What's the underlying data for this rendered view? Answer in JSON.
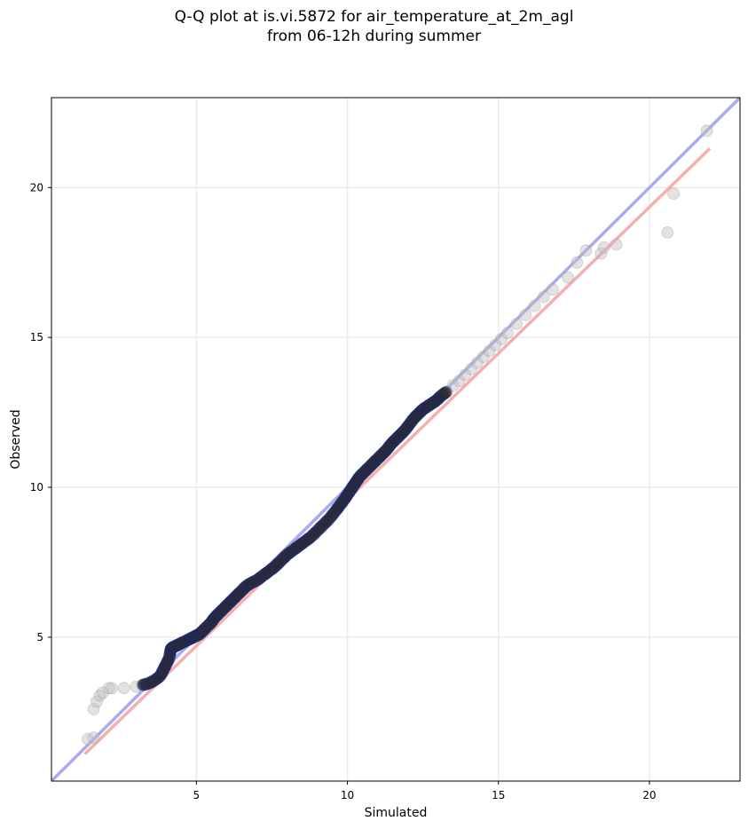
{
  "title_line1": "Q-Q plot at is.vi.5872 for air_temperature_at_2m_agl",
  "title_line2": "from 06-12h during summer",
  "chart_data": {
    "type": "scatter",
    "xlabel": "Simulated",
    "ylabel": "Observed",
    "xlim": [
      0.2,
      23.0
    ],
    "ylim": [
      0.2,
      23.0
    ],
    "xticks": [
      5,
      10,
      15,
      20
    ],
    "yticks": [
      5,
      10,
      15,
      20
    ],
    "xtick_labels": [
      "5",
      "10",
      "15",
      "20"
    ],
    "ytick_labels": [
      "5",
      "10",
      "15",
      "20"
    ],
    "grid": true,
    "reference_line": {
      "x": [
        0.2,
        23.0
      ],
      "y": [
        0.2,
        23.0
      ],
      "color": "#aaaaee"
    },
    "fit_line": {
      "x": [
        1.3,
        22.0
      ],
      "y": [
        1.1,
        21.3
      ],
      "color": "#f4a6a6"
    },
    "series": [
      {
        "marker_color": "#bfbfbf",
        "x": [
          1.4,
          1.6,
          1.6,
          1.7,
          1.8,
          1.9,
          2.1,
          2.2,
          2.6,
          3.0,
          3.2,
          3.4,
          3.6,
          3.8,
          3.9,
          4.0,
          4.1,
          4.15,
          4.2,
          4.3,
          4.4,
          4.6,
          4.8,
          4.9,
          5.0,
          5.1,
          5.2,
          5.35,
          5.5,
          5.6,
          5.75,
          5.9,
          6.05,
          6.2,
          6.35,
          6.5,
          6.65,
          6.8,
          7.0,
          7.2,
          7.4,
          7.6,
          7.8,
          8.0,
          8.2,
          8.4,
          8.6,
          8.8,
          9.0,
          9.2,
          9.4,
          9.6,
          9.75,
          9.9,
          10.0,
          10.1,
          10.2,
          10.3,
          10.4,
          10.55,
          10.7,
          10.85,
          11.0,
          11.15,
          11.3,
          11.45,
          11.6,
          11.75,
          11.9,
          12.05,
          12.2,
          12.35,
          12.5,
          12.65,
          12.8,
          12.95,
          13.1,
          13.3,
          13.5,
          13.7,
          13.9,
          14.1,
          14.3,
          14.5,
          14.7,
          14.9,
          15.1,
          15.3,
          15.6,
          15.9,
          16.2,
          16.5,
          16.8,
          17.3,
          17.6,
          17.9,
          18.4,
          18.5,
          18.9,
          20.6,
          20.8,
          21.9
        ],
        "y": [
          1.6,
          1.65,
          2.6,
          2.85,
          3.05,
          3.15,
          3.3,
          3.3,
          3.3,
          3.35,
          3.4,
          3.45,
          3.55,
          3.7,
          3.9,
          4.1,
          4.3,
          4.6,
          4.65,
          4.7,
          4.75,
          4.85,
          4.95,
          5.0,
          5.05,
          5.1,
          5.2,
          5.35,
          5.5,
          5.65,
          5.8,
          5.95,
          6.1,
          6.25,
          6.4,
          6.55,
          6.7,
          6.8,
          6.9,
          7.05,
          7.2,
          7.35,
          7.55,
          7.75,
          7.9,
          8.05,
          8.2,
          8.35,
          8.55,
          8.75,
          8.95,
          9.2,
          9.4,
          9.6,
          9.75,
          9.9,
          10.05,
          10.2,
          10.35,
          10.5,
          10.65,
          10.8,
          10.95,
          11.1,
          11.25,
          11.45,
          11.6,
          11.75,
          11.9,
          12.1,
          12.3,
          12.45,
          12.6,
          12.7,
          12.8,
          12.9,
          13.05,
          13.2,
          13.4,
          13.55,
          13.75,
          13.95,
          14.15,
          14.35,
          14.55,
          14.75,
          14.95,
          15.15,
          15.45,
          15.75,
          16.05,
          16.35,
          16.6,
          17.0,
          17.5,
          17.9,
          17.8,
          18.0,
          18.1,
          18.5,
          19.8,
          21.9
        ]
      }
    ]
  }
}
